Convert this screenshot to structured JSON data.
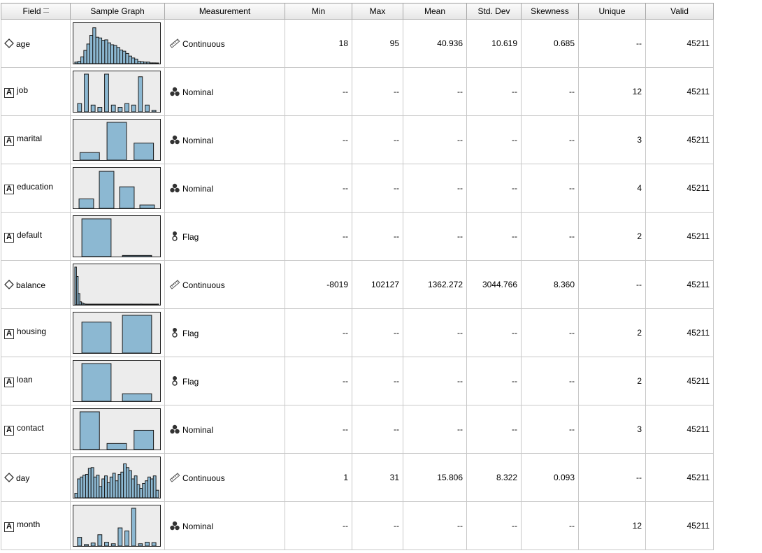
{
  "headers": {
    "field": "Field",
    "graph": "Sample Graph",
    "measurement": "Measurement",
    "min": "Min",
    "max": "Max",
    "mean": "Mean",
    "std": "Std. Dev",
    "skew": "Skewness",
    "unique": "Unique",
    "valid": "Valid"
  },
  "icons": {
    "field_sort": "sort-icon",
    "continuous_field": "diamond-icon",
    "categorical_field": "a-box-icon",
    "continuous_measure": "ruler-icon",
    "nominal_measure": "three-dots-icon",
    "flag_measure": "flag-bulb-icon"
  },
  "colors": {
    "bar_fill": "#8cb8d2",
    "graph_bg": "#ececec"
  },
  "rows": [
    {
      "field": "age",
      "type": "continuous",
      "measurement": "Continuous",
      "min": "18",
      "max": "95",
      "mean": "40.936",
      "std": "10.619",
      "skew": "0.685",
      "unique": "--",
      "valid": "45211",
      "graph": {
        "kind": "hist",
        "bars": [
          0.04,
          0.06,
          0.18,
          0.35,
          0.52,
          0.75,
          0.95,
          0.7,
          0.68,
          0.62,
          0.63,
          0.55,
          0.5,
          0.48,
          0.43,
          0.36,
          0.33,
          0.27,
          0.2,
          0.15,
          0.12,
          0.06,
          0.05,
          0.04,
          0.04,
          0.02,
          0.02,
          0.01
        ]
      }
    },
    {
      "field": "job",
      "type": "categorical",
      "measurement": "Nominal",
      "min": "--",
      "max": "--",
      "mean": "--",
      "std": "--",
      "skew": "--",
      "unique": "12",
      "valid": "45211",
      "graph": {
        "kind": "cat",
        "bars": [
          0.22,
          1.0,
          0.18,
          0.12,
          1.0,
          0.18,
          0.12,
          0.22,
          0.18,
          0.93,
          0.18,
          0.04
        ]
      }
    },
    {
      "field": "marital",
      "type": "categorical",
      "measurement": "Nominal",
      "min": "--",
      "max": "--",
      "mean": "--",
      "std": "--",
      "skew": "--",
      "unique": "3",
      "valid": "45211",
      "graph": {
        "kind": "cat",
        "bars": [
          0.2,
          1.0,
          0.45
        ]
      }
    },
    {
      "field": "education",
      "type": "categorical",
      "measurement": "Nominal",
      "min": "--",
      "max": "--",
      "mean": "--",
      "std": "--",
      "skew": "--",
      "unique": "4",
      "valid": "45211",
      "graph": {
        "kind": "cat",
        "bars": [
          0.25,
          0.98,
          0.57,
          0.09
        ]
      }
    },
    {
      "field": "default",
      "type": "categorical",
      "measurement": "Flag",
      "min": "--",
      "max": "--",
      "mean": "--",
      "std": "--",
      "skew": "--",
      "unique": "2",
      "valid": "45211",
      "graph": {
        "kind": "cat",
        "bars": [
          1.0,
          0.03
        ]
      }
    },
    {
      "field": "balance",
      "type": "continuous",
      "measurement": "Continuous",
      "min": "-8019",
      "max": "102127",
      "mean": "1362.272",
      "std": "3044.766",
      "skew": "8.360",
      "unique": "--",
      "valid": "45211",
      "graph": {
        "kind": "hist",
        "bars": [
          1.0,
          0.75,
          0.3,
          0.08,
          0.05,
          0.03,
          0.02,
          0.015,
          0.01,
          0.01,
          0.008,
          0.005,
          0.005,
          0.004,
          0.004,
          0.003,
          0.003,
          0.003,
          0.002,
          0.002,
          0.002,
          0.002,
          0.002,
          0.002,
          0.002,
          0.002,
          0.002,
          0.002,
          0.002,
          0.002,
          0.002,
          0.002,
          0.002,
          0.002,
          0.002,
          0.002,
          0.002,
          0.002,
          0.002,
          0.02,
          0.002,
          0.002,
          0.002,
          0.002,
          0.002,
          0.002,
          0.002,
          0.002,
          0.002,
          0.02
        ]
      }
    },
    {
      "field": "housing",
      "type": "categorical",
      "measurement": "Flag",
      "min": "--",
      "max": "--",
      "mean": "--",
      "std": "--",
      "skew": "--",
      "unique": "2",
      "valid": "45211",
      "graph": {
        "kind": "cat",
        "bars": [
          0.82,
          1.0
        ]
      }
    },
    {
      "field": "loan",
      "type": "categorical",
      "measurement": "Flag",
      "min": "--",
      "max": "--",
      "mean": "--",
      "std": "--",
      "skew": "--",
      "unique": "2",
      "valid": "45211",
      "graph": {
        "kind": "cat",
        "bars": [
          1.0,
          0.2
        ]
      }
    },
    {
      "field": "contact",
      "type": "categorical",
      "measurement": "Nominal",
      "min": "--",
      "max": "--",
      "mean": "--",
      "std": "--",
      "skew": "--",
      "unique": "3",
      "valid": "45211",
      "graph": {
        "kind": "cat",
        "bars": [
          1.0,
          0.16,
          0.51
        ]
      }
    },
    {
      "field": "day",
      "type": "continuous",
      "measurement": "Continuous",
      "min": "1",
      "max": "31",
      "mean": "15.806",
      "std": "8.322",
      "skew": "0.093",
      "unique": "--",
      "valid": "45211",
      "graph": {
        "kind": "hist",
        "bars": [
          0.12,
          0.5,
          0.55,
          0.6,
          0.62,
          0.78,
          0.8,
          0.55,
          0.6,
          0.3,
          0.5,
          0.58,
          0.4,
          0.55,
          0.65,
          0.45,
          0.62,
          0.68,
          0.9,
          0.8,
          0.72,
          0.5,
          0.58,
          0.35,
          0.25,
          0.38,
          0.45,
          0.55,
          0.5,
          0.58,
          0.2
        ]
      }
    },
    {
      "field": "month",
      "type": "categorical",
      "measurement": "Nominal",
      "min": "--",
      "max": "--",
      "mean": "--",
      "std": "--",
      "skew": "--",
      "unique": "12",
      "valid": "45211",
      "graph": {
        "kind": "cat",
        "bars": [
          0.23,
          0.04,
          0.08,
          0.3,
          0.1,
          0.06,
          0.48,
          0.4,
          1.0,
          0.06,
          0.1,
          0.09
        ]
      }
    }
  ]
}
